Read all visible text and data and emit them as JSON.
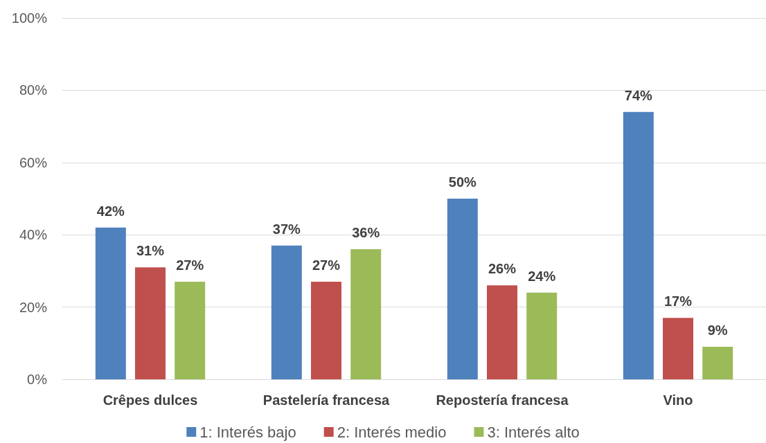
{
  "chart_data": {
    "type": "bar",
    "categories": [
      "Crêpes dulces",
      "Pastelería francesa",
      "Repostería francesa",
      "Vino"
    ],
    "series": [
      {
        "name": "1: Interés bajo",
        "color": "#4f81bd",
        "values": [
          42,
          37,
          50,
          74
        ],
        "value_labels": [
          "42%",
          "37%",
          "50%",
          "74%"
        ]
      },
      {
        "name": "2: Interés medio",
        "color": "#c0504d",
        "values": [
          31,
          27,
          26,
          17
        ],
        "value_labels": [
          "31%",
          "27%",
          "26%",
          "17%"
        ]
      },
      {
        "name": "3: Interés alto",
        "color": "#9bbb59",
        "values": [
          27,
          36,
          24,
          9
        ],
        "value_labels": [
          "27%",
          "36%",
          "24%",
          "9%"
        ]
      }
    ],
    "ylim": [
      0,
      100
    ],
    "yticks": [
      {
        "value": 0,
        "label": "0%"
      },
      {
        "value": 20,
        "label": "20%"
      },
      {
        "value": 40,
        "label": "40%"
      },
      {
        "value": 60,
        "label": "60%"
      },
      {
        "value": 80,
        "label": "80%"
      },
      {
        "value": 100,
        "label": "100%"
      }
    ],
    "grid": "y",
    "legend": "bottom"
  }
}
